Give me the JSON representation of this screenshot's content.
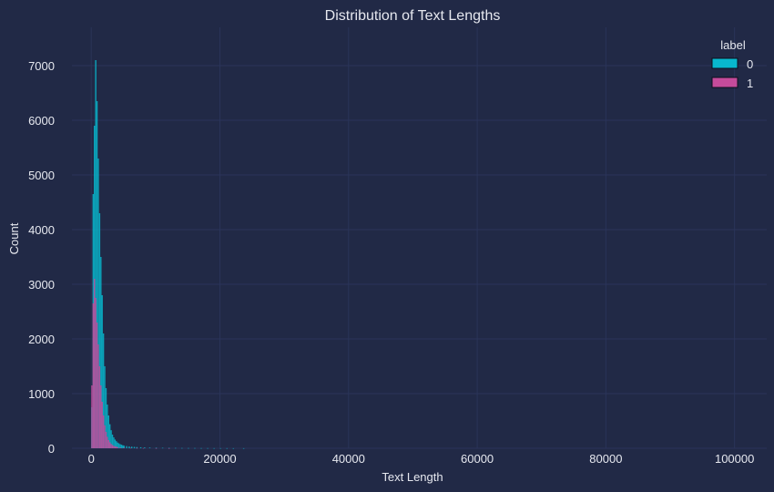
{
  "chart_data": {
    "type": "bar",
    "title": "Distribution of Text Lengths",
    "xlabel": "Text Length",
    "ylabel": "Count",
    "xlim": [
      -3000,
      105000
    ],
    "ylim": [
      0,
      7700
    ],
    "xticks": [
      0,
      20000,
      40000,
      60000,
      80000,
      100000
    ],
    "xtick_labels": [
      "0",
      "20000",
      "40000",
      "60000",
      "80000",
      "100000"
    ],
    "yticks": [
      0,
      1000,
      2000,
      3000,
      4000,
      5000,
      6000,
      7000
    ],
    "ytick_labels": [
      "0",
      "1000",
      "2000",
      "3000",
      "4000",
      "5000",
      "6000",
      "7000"
    ],
    "grid": true,
    "legend": {
      "title": "label",
      "position": "top-right"
    },
    "bin_width": 200,
    "series": [
      {
        "name": "0",
        "color": "#08B8CE",
        "bins": [
          {
            "x": 0,
            "y": 750
          },
          {
            "x": 200,
            "y": 4650
          },
          {
            "x": 400,
            "y": 5900
          },
          {
            "x": 600,
            "y": 7100
          },
          {
            "x": 800,
            "y": 6350
          },
          {
            "x": 1000,
            "y": 5300
          },
          {
            "x": 1200,
            "y": 4300
          },
          {
            "x": 1400,
            "y": 3500
          },
          {
            "x": 1600,
            "y": 2800
          },
          {
            "x": 1800,
            "y": 2100
          },
          {
            "x": 2000,
            "y": 1500
          },
          {
            "x": 2200,
            "y": 1100
          },
          {
            "x": 2400,
            "y": 800
          },
          {
            "x": 2600,
            "y": 600
          },
          {
            "x": 2800,
            "y": 440
          },
          {
            "x": 3000,
            "y": 330
          },
          {
            "x": 3200,
            "y": 250
          },
          {
            "x": 3400,
            "y": 200
          },
          {
            "x": 3600,
            "y": 160
          },
          {
            "x": 3800,
            "y": 130
          },
          {
            "x": 4000,
            "y": 105
          },
          {
            "x": 4200,
            "y": 90
          },
          {
            "x": 4400,
            "y": 75
          },
          {
            "x": 4600,
            "y": 65
          },
          {
            "x": 4800,
            "y": 55
          },
          {
            "x": 5000,
            "y": 48
          },
          {
            "x": 5400,
            "y": 40
          },
          {
            "x": 5800,
            "y": 34
          },
          {
            "x": 6200,
            "y": 29
          },
          {
            "x": 6600,
            "y": 25
          },
          {
            "x": 7000,
            "y": 22
          },
          {
            "x": 7600,
            "y": 18
          },
          {
            "x": 8200,
            "y": 15
          },
          {
            "x": 9000,
            "y": 12
          },
          {
            "x": 10000,
            "y": 10
          },
          {
            "x": 11000,
            "y": 8
          },
          {
            "x": 12000,
            "y": 7
          },
          {
            "x": 13000,
            "y": 6
          },
          {
            "x": 14000,
            "y": 5
          },
          {
            "x": 15000,
            "y": 4
          },
          {
            "x": 16000,
            "y": 4
          },
          {
            "x": 17000,
            "y": 3
          },
          {
            "x": 18000,
            "y": 3
          },
          {
            "x": 19000,
            "y": 2
          },
          {
            "x": 20000,
            "y": 2
          },
          {
            "x": 21000,
            "y": 2
          },
          {
            "x": 22000,
            "y": 1
          },
          {
            "x": 23600,
            "y": 1
          }
        ]
      },
      {
        "name": "1",
        "color": "#C54B9B",
        "bins": [
          {
            "x": 0,
            "y": 1150
          },
          {
            "x": 200,
            "y": 2650
          },
          {
            "x": 400,
            "y": 3100
          },
          {
            "x": 600,
            "y": 2750
          },
          {
            "x": 800,
            "y": 2300
          },
          {
            "x": 1000,
            "y": 1900
          },
          {
            "x": 1200,
            "y": 1500
          },
          {
            "x": 1400,
            "y": 1150
          },
          {
            "x": 1600,
            "y": 850
          },
          {
            "x": 1800,
            "y": 600
          },
          {
            "x": 2000,
            "y": 420
          },
          {
            "x": 2200,
            "y": 300
          },
          {
            "x": 2400,
            "y": 210
          },
          {
            "x": 2600,
            "y": 150
          },
          {
            "x": 2800,
            "y": 110
          },
          {
            "x": 3000,
            "y": 80
          },
          {
            "x": 3200,
            "y": 60
          },
          {
            "x": 3400,
            "y": 45
          },
          {
            "x": 3600,
            "y": 35
          },
          {
            "x": 3800,
            "y": 28
          },
          {
            "x": 4000,
            "y": 22
          },
          {
            "x": 4400,
            "y": 16
          },
          {
            "x": 5000,
            "y": 11
          },
          {
            "x": 6000,
            "y": 7
          },
          {
            "x": 7000,
            "y": 5
          },
          {
            "x": 8000,
            "y": 3
          },
          {
            "x": 10000,
            "y": 2
          },
          {
            "x": 12000,
            "y": 1
          }
        ]
      }
    ]
  }
}
